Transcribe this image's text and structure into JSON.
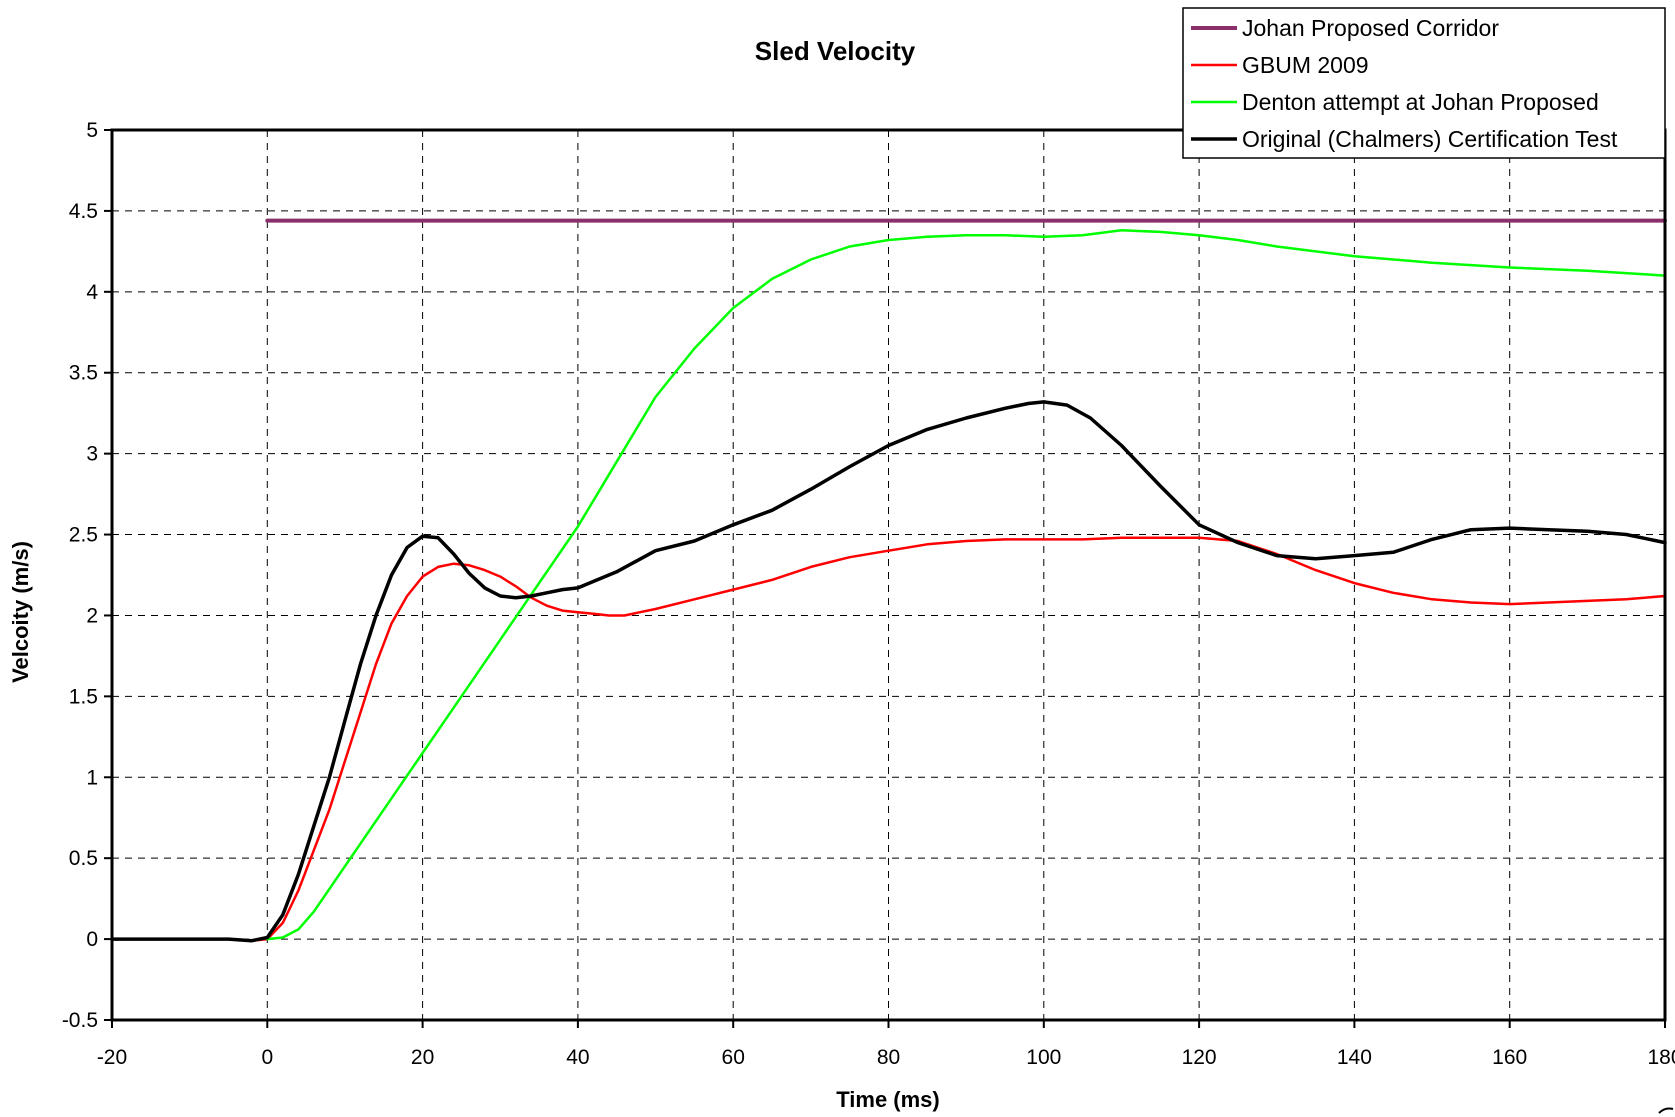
{
  "chart_data": {
    "type": "line",
    "title": "Sled Velocity",
    "xlabel": "Time (ms)",
    "ylabel": "Velcoity (m/s)",
    "xlim": [
      -20,
      180
    ],
    "ylim": [
      -0.5,
      5
    ],
    "x_ticks": [
      -20,
      0,
      20,
      40,
      60,
      80,
      100,
      120,
      140,
      160,
      180
    ],
    "x_tick_labels": [
      "-20",
      "0",
      "20",
      "40",
      "60",
      "80",
      "100",
      "120",
      "140",
      "160",
      "180"
    ],
    "y_ticks": [
      -0.5,
      0,
      0.5,
      1,
      1.5,
      2,
      2.5,
      3,
      3.5,
      4,
      4.5,
      5
    ],
    "y_tick_labels": [
      "-0.5",
      "0",
      "0.5",
      "1",
      "1.5",
      "2",
      "2.5",
      "3",
      "3.5",
      "4",
      "4.5",
      "5"
    ],
    "grid": true,
    "legend_position": "top-right",
    "series": [
      {
        "name": "Johan Proposed Corridor",
        "color": "#8b2f6b",
        "width": 4,
        "x": [
          0,
          180
        ],
        "y": [
          4.44,
          4.44
        ]
      },
      {
        "name": "GBUM 2009",
        "color": "#ff0000",
        "width": 2.5,
        "x": [
          -20,
          -5,
          -2,
          0,
          2,
          4,
          6,
          8,
          10,
          12,
          14,
          16,
          18,
          20,
          22,
          24,
          26,
          28,
          30,
          32,
          34,
          36,
          38,
          40,
          42,
          44,
          46,
          48,
          50,
          55,
          60,
          65,
          70,
          75,
          80,
          85,
          90,
          95,
          100,
          105,
          110,
          115,
          120,
          125,
          130,
          135,
          140,
          145,
          150,
          155,
          160,
          165,
          170,
          175,
          180
        ],
        "y": [
          0,
          0,
          -0.01,
          0,
          0.1,
          0.3,
          0.55,
          0.8,
          1.1,
          1.4,
          1.7,
          1.95,
          2.12,
          2.24,
          2.3,
          2.32,
          2.31,
          2.28,
          2.24,
          2.18,
          2.11,
          2.06,
          2.03,
          2.02,
          2.01,
          2.0,
          2.0,
          2.02,
          2.04,
          2.1,
          2.16,
          2.22,
          2.3,
          2.36,
          2.4,
          2.44,
          2.46,
          2.47,
          2.47,
          2.47,
          2.48,
          2.48,
          2.48,
          2.46,
          2.38,
          2.28,
          2.2,
          2.14,
          2.1,
          2.08,
          2.07,
          2.08,
          2.09,
          2.1,
          2.12
        ]
      },
      {
        "name": "Denton attempt at Johan Proposed",
        "color": "#00ff00",
        "width": 2.5,
        "x": [
          0,
          2,
          4,
          6,
          10,
          15,
          20,
          25,
          30,
          35,
          40,
          45,
          50,
          55,
          60,
          65,
          70,
          75,
          80,
          85,
          90,
          95,
          100,
          105,
          110,
          115,
          120,
          125,
          130,
          140,
          150,
          160,
          170,
          180
        ],
        "y": [
          0,
          0.01,
          0.06,
          0.17,
          0.45,
          0.8,
          1.15,
          1.5,
          1.85,
          2.2,
          2.55,
          2.95,
          3.35,
          3.65,
          3.9,
          4.08,
          4.2,
          4.28,
          4.32,
          4.34,
          4.35,
          4.35,
          4.34,
          4.35,
          4.38,
          4.37,
          4.35,
          4.32,
          4.28,
          4.22,
          4.18,
          4.15,
          4.13,
          4.1
        ]
      },
      {
        "name": "Original (Chalmers) Certification Test",
        "color": "#000000",
        "width": 3.5,
        "x": [
          -20,
          -5,
          -2,
          0,
          2,
          4,
          6,
          8,
          10,
          12,
          14,
          16,
          18,
          20,
          22,
          24,
          26,
          28,
          30,
          32,
          34,
          36,
          38,
          40,
          45,
          50,
          55,
          60,
          65,
          70,
          75,
          80,
          85,
          90,
          95,
          98,
          100,
          103,
          106,
          110,
          115,
          120,
          125,
          130,
          135,
          140,
          145,
          150,
          155,
          160,
          165,
          170,
          175,
          180
        ],
        "y": [
          0,
          0,
          -0.01,
          0.01,
          0.15,
          0.4,
          0.7,
          1.0,
          1.35,
          1.7,
          2.0,
          2.25,
          2.42,
          2.49,
          2.48,
          2.38,
          2.26,
          2.17,
          2.12,
          2.11,
          2.12,
          2.14,
          2.16,
          2.17,
          2.27,
          2.4,
          2.46,
          2.56,
          2.65,
          2.78,
          2.92,
          3.05,
          3.15,
          3.22,
          3.28,
          3.31,
          3.32,
          3.3,
          3.22,
          3.05,
          2.8,
          2.56,
          2.45,
          2.37,
          2.35,
          2.37,
          2.39,
          2.47,
          2.53,
          2.54,
          2.53,
          2.52,
          2.5,
          2.45
        ]
      }
    ]
  }
}
